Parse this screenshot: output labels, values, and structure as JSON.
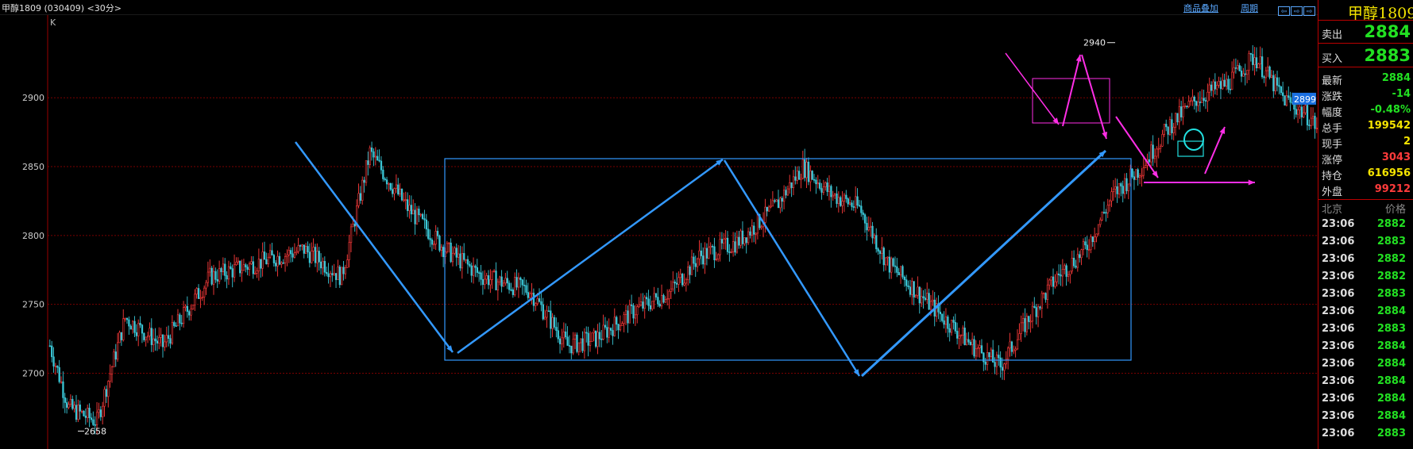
{
  "header": {
    "title": "甲醇1809 (030409) <30分>",
    "links": [
      "商品叠加",
      "周期"
    ],
    "tools": [
      "⇦",
      "⇨",
      "⇨"
    ]
  },
  "chart": {
    "label": "K",
    "y_ticks": [
      "2900",
      "2850",
      "2800",
      "2750",
      "2700"
    ],
    "high_label": "2940",
    "low_label": "2658",
    "last_price_tag": "2899"
  },
  "chart_data": {
    "type": "candlestick",
    "title": "",
    "ylim": [
      2645,
      2960
    ],
    "y_ticks": [
      2700,
      2750,
      2800,
      2850,
      2900
    ],
    "high": 2940,
    "low": 2658,
    "last": 2899,
    "series_outline": [
      [
        0,
        2720
      ],
      [
        10,
        2675
      ],
      [
        25,
        2665
      ],
      [
        40,
        2740
      ],
      [
        60,
        2720
      ],
      [
        85,
        2770
      ],
      [
        110,
        2780
      ],
      [
        135,
        2790
      ],
      [
        155,
        2770
      ],
      [
        170,
        2860
      ],
      [
        190,
        2820
      ],
      [
        210,
        2790
      ],
      [
        230,
        2770
      ],
      [
        255,
        2760
      ],
      [
        275,
        2720
      ],
      [
        290,
        2725
      ],
      [
        310,
        2745
      ],
      [
        330,
        2760
      ],
      [
        345,
        2785
      ],
      [
        365,
        2795
      ],
      [
        385,
        2820
      ],
      [
        400,
        2850
      ],
      [
        415,
        2830
      ],
      [
        430,
        2820
      ],
      [
        445,
        2780
      ],
      [
        460,
        2760
      ],
      [
        475,
        2740
      ],
      [
        490,
        2720
      ],
      [
        505,
        2705
      ],
      [
        520,
        2740
      ],
      [
        535,
        2770
      ],
      [
        550,
        2790
      ],
      [
        565,
        2830
      ],
      [
        580,
        2850
      ],
      [
        595,
        2880
      ],
      [
        610,
        2900
      ],
      [
        625,
        2910
      ],
      [
        640,
        2930
      ],
      [
        655,
        2900
      ],
      [
        670,
        2885
      ],
      [
        680,
        2860
      ],
      [
        690,
        2850
      ],
      [
        700,
        2855
      ],
      [
        710,
        2880
      ],
      [
        720,
        2910
      ],
      [
        735,
        2895
      ],
      [
        745,
        2885
      ]
    ]
  },
  "panel": {
    "title": "甲醇1809",
    "sell_label": "卖出",
    "sell_value": "2884",
    "buy_label": "买入",
    "buy_value": "2883",
    "stats": [
      {
        "label": "最新",
        "value": "2884",
        "color": "#22e022"
      },
      {
        "label": "涨跌",
        "value": "-14",
        "color": "#22e022"
      },
      {
        "label": "幅度",
        "value": "-0.48%",
        "color": "#22e022"
      },
      {
        "label": "总手",
        "value": "199542",
        "color": "#f5e400"
      },
      {
        "label": "现手",
        "value": "2",
        "color": "#f5e400"
      },
      {
        "label": "涨停",
        "value": "3043",
        "color": "#ff3b3b"
      },
      {
        "label": "持仓",
        "value": "616956",
        "color": "#f5e400"
      },
      {
        "label": "外盘",
        "value": "99212",
        "color": "#ff3b3b"
      }
    ],
    "ticks_header": {
      "left": "北京",
      "right": "价格"
    },
    "ticks": [
      {
        "time": "23:06",
        "price": "2882"
      },
      {
        "time": "23:06",
        "price": "2883"
      },
      {
        "time": "23:06",
        "price": "2882"
      },
      {
        "time": "23:06",
        "price": "2882"
      },
      {
        "time": "23:06",
        "price": "2883"
      },
      {
        "time": "23:06",
        "price": "2884"
      },
      {
        "time": "23:06",
        "price": "2883"
      },
      {
        "time": "23:06",
        "price": "2884"
      },
      {
        "time": "23:06",
        "price": "2884"
      },
      {
        "time": "23:06",
        "price": "2884"
      },
      {
        "time": "23:06",
        "price": "2884"
      },
      {
        "time": "23:06",
        "price": "2884"
      },
      {
        "time": "23:06",
        "price": "2883"
      }
    ]
  },
  "colors": {
    "up": "#ff3b3b",
    "down": "#3ac6d6",
    "grid": "#7a0000",
    "blue_annotation": "#3399ff",
    "magenta_annotation": "#ff2ee6",
    "cyan_annotation": "#22e0e0",
    "price_tag": "#1a6fe0"
  }
}
